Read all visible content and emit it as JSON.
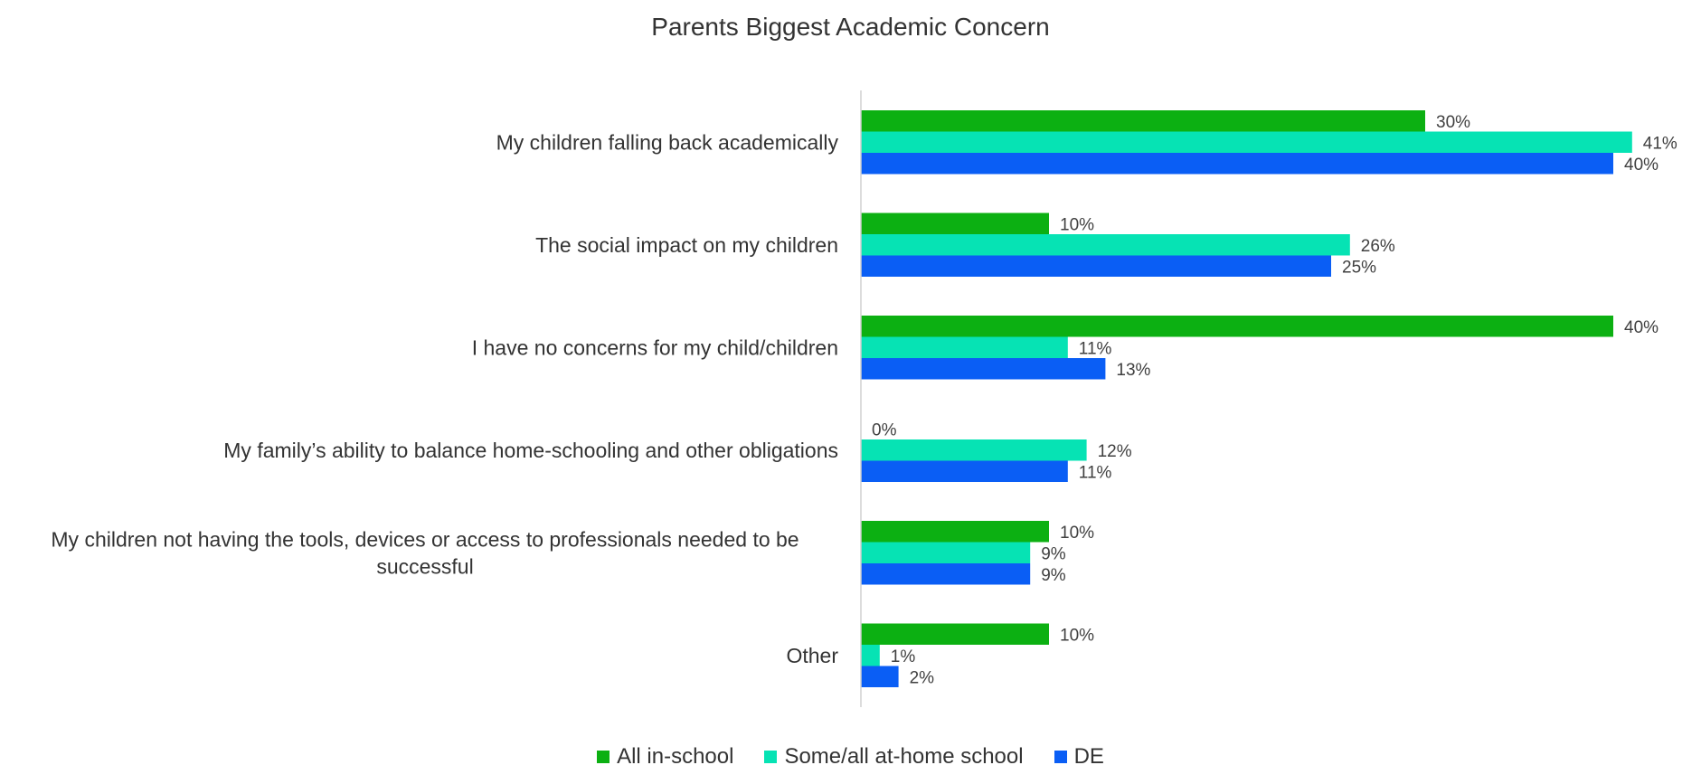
{
  "chart_data": {
    "type": "bar",
    "orientation": "horizontal",
    "title": "Parents Biggest Academic Concern",
    "categories": [
      [
        "My children falling back academically"
      ],
      [
        "The social impact on my children"
      ],
      [
        "I have no concerns for my child/children"
      ],
      [
        "My family’s ability to balance home-schooling and other obligations"
      ],
      [
        "My children not having the tools, devices or access to professionals needed to be",
        "successful"
      ],
      [
        "Other"
      ]
    ],
    "series": [
      {
        "name": "All in-school",
        "color": "#0cb012",
        "values": [
          30,
          10,
          40,
          0,
          10,
          10
        ],
        "labels": [
          "30%",
          "10%",
          "40%",
          "0%",
          "10%",
          "10%"
        ]
      },
      {
        "name": "Some/all at-home school",
        "color": "#06e3b4",
        "values": [
          41,
          26,
          11,
          12,
          9,
          1
        ],
        "labels": [
          "41%",
          "26%",
          "11%",
          "12%",
          "9%",
          "1%"
        ]
      },
      {
        "name": "DE",
        "color": "#0a5ef5",
        "values": [
          40,
          25,
          13,
          11,
          9,
          2
        ],
        "labels": [
          "40%",
          "25%",
          "13%",
          "11%",
          "9%",
          "2%"
        ]
      }
    ],
    "xlim": [
      0,
      45
    ],
    "legend_position": "bottom",
    "grid": false
  }
}
